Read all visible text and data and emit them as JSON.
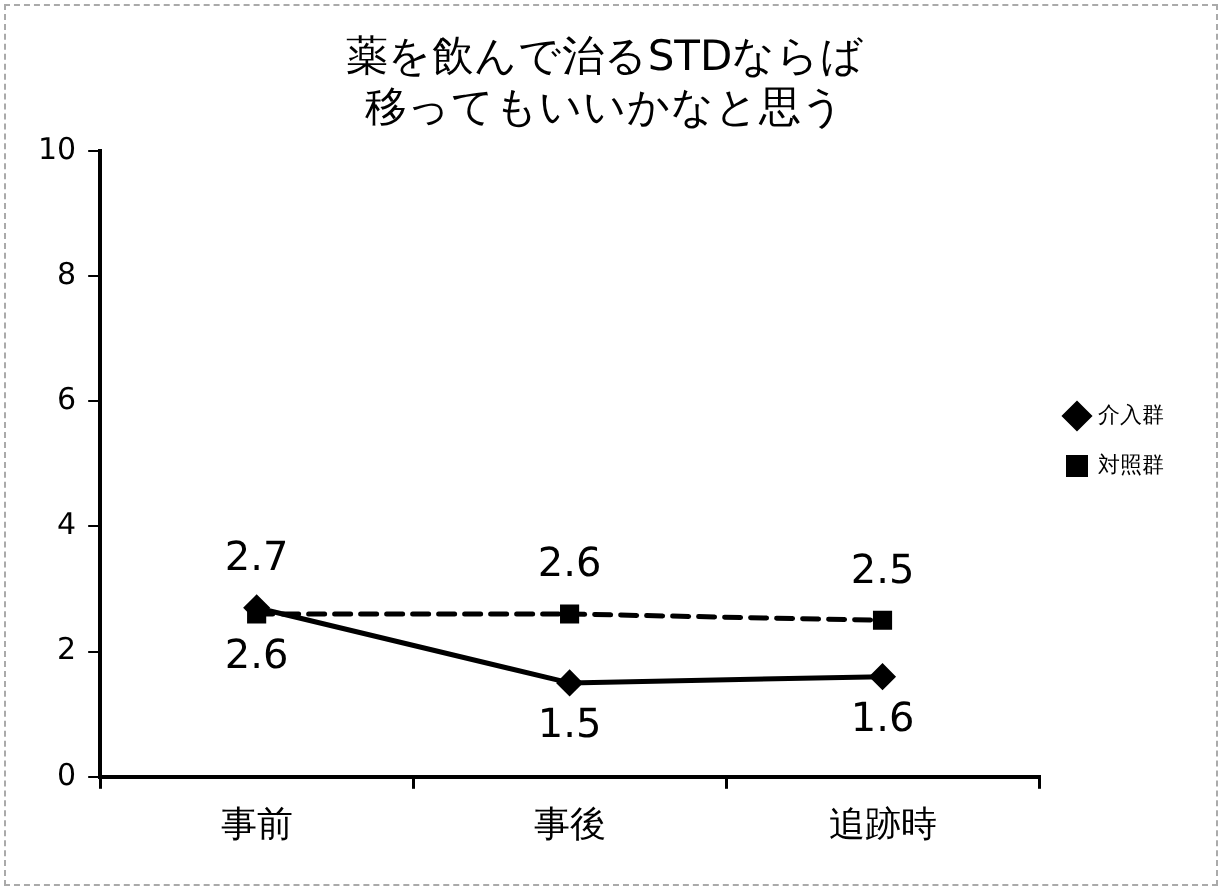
{
  "chart_data": {
    "type": "line",
    "title": "薬を飲んで治るSTDならば移ってもいいかなと思う",
    "categories": [
      "事前",
      "事後",
      "追跡時"
    ],
    "series": [
      {
        "name": "介入群",
        "color": "#000000",
        "values": [
          2.7,
          1.5,
          1.6
        ],
        "marker": "diamond",
        "line_style": "solid"
      },
      {
        "name": "対照群",
        "color": "#000000",
        "values": [
          2.6,
          2.6,
          2.5
        ],
        "marker": "square",
        "line_style": "dashed"
      }
    ],
    "ylim": [
      0,
      10
    ],
    "yticks": [
      0,
      2,
      4,
      6,
      8,
      10
    ],
    "grid": false,
    "legend": "right",
    "data_labels": true
  }
}
